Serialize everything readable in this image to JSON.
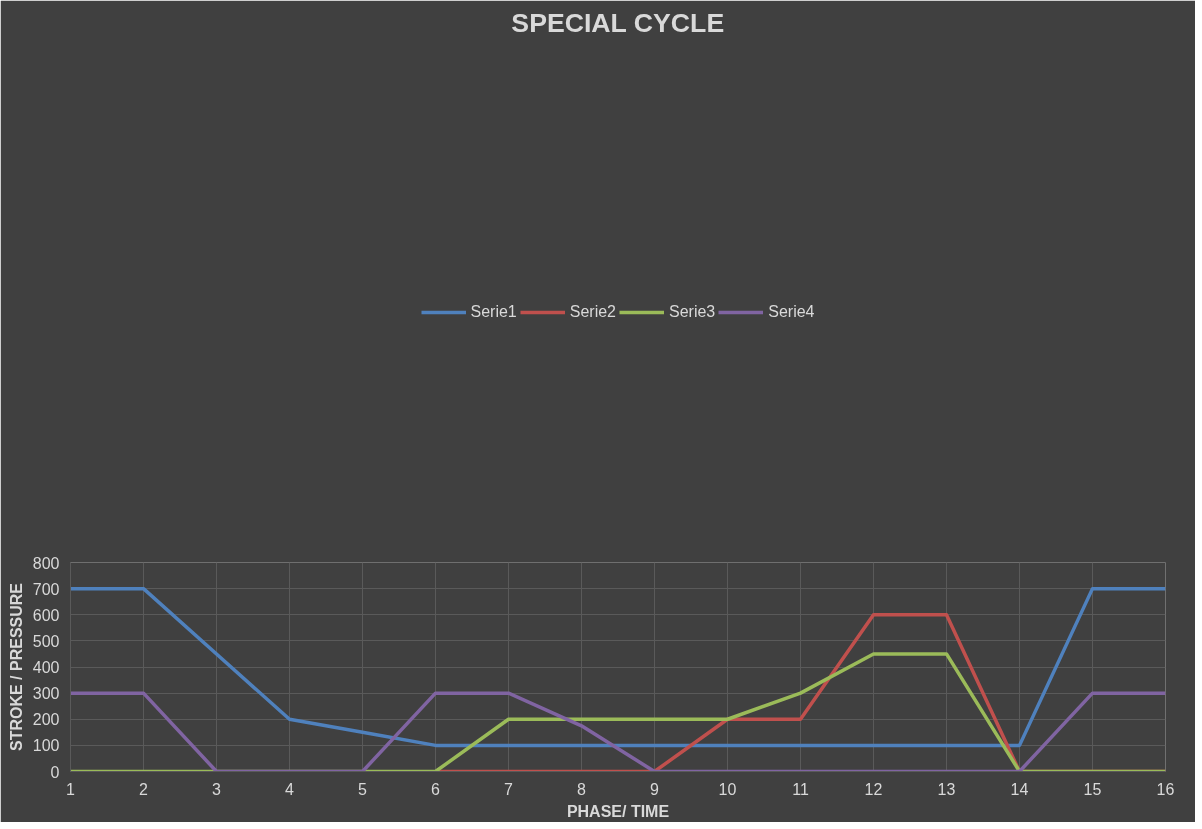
{
  "chart_data": {
    "type": "line",
    "title": "SPECIAL CYCLE",
    "xlabel": "PHASE/ TIME",
    "ylabel": "STROKE / PRESSURE",
    "x": [
      1,
      2,
      3,
      4,
      5,
      6,
      7,
      8,
      9,
      10,
      11,
      12,
      13,
      14,
      15,
      16
    ],
    "xlim": [
      1,
      16
    ],
    "xticks": [
      1,
      2,
      3,
      4,
      5,
      6,
      7,
      8,
      9,
      10,
      11,
      12,
      13,
      14,
      15,
      16
    ],
    "ylim": [
      0,
      800
    ],
    "yticks": [
      0,
      100,
      200,
      300,
      400,
      500,
      600,
      700,
      800
    ],
    "grid": true,
    "legend": "top",
    "marker": "none",
    "line_style": "solid",
    "series": [
      {
        "name": "Serie1",
        "color": "#4f81bd",
        "values": [
          700,
          700,
          450,
          200,
          150,
          100,
          100,
          100,
          100,
          100,
          100,
          100,
          100,
          100,
          700,
          700
        ]
      },
      {
        "name": "Serie2",
        "color": "#c0504d",
        "values": [
          null,
          null,
          null,
          null,
          null,
          0,
          0,
          0,
          0,
          200,
          200,
          600,
          600,
          0,
          0,
          0
        ]
      },
      {
        "name": "Serie3",
        "color": "#9bbb59",
        "values": [
          0,
          0,
          0,
          0,
          0,
          0,
          200,
          200,
          200,
          200,
          300,
          450,
          450,
          0,
          0,
          0
        ]
      },
      {
        "name": "Serie4",
        "color": "#8064a2",
        "values": [
          300,
          300,
          0,
          0,
          0,
          300,
          300,
          175,
          0,
          0,
          0,
          0,
          0,
          0,
          300,
          300
        ]
      }
    ]
  }
}
